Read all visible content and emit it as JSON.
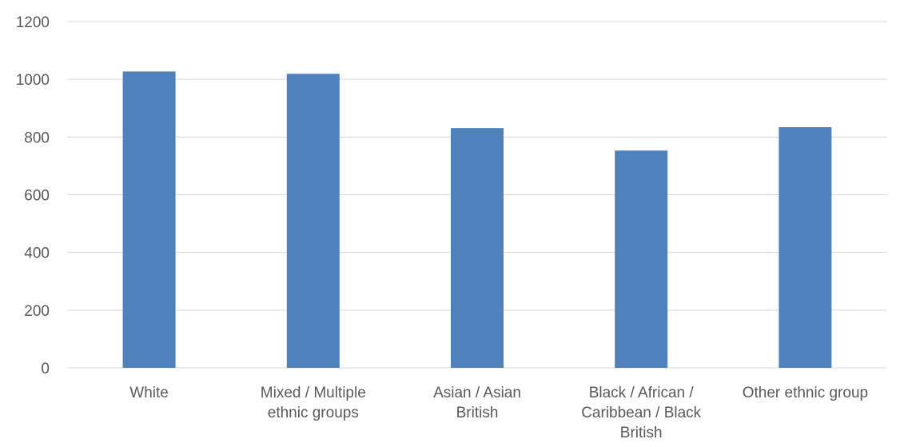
{
  "chart_data": {
    "type": "bar",
    "categories": [
      [
        "White"
      ],
      [
        "Mixed / Multiple",
        "ethnic groups"
      ],
      [
        "Asian / Asian",
        "British"
      ],
      [
        "Black / African /",
        "Caribbean / Black",
        "British"
      ],
      [
        "Other ethnic group"
      ]
    ],
    "values": [
      1027,
      1019,
      831,
      753,
      834
    ],
    "title": "",
    "xlabel": "",
    "ylabel": "",
    "ylim": [
      0,
      1200
    ],
    "yticks": [
      0,
      200,
      400,
      600,
      800,
      1000,
      1200
    ],
    "grid": true,
    "legend": "none",
    "colors": {
      "bar": "#4f81bd",
      "grid": "#d9d9d9",
      "text": "#595959"
    }
  }
}
